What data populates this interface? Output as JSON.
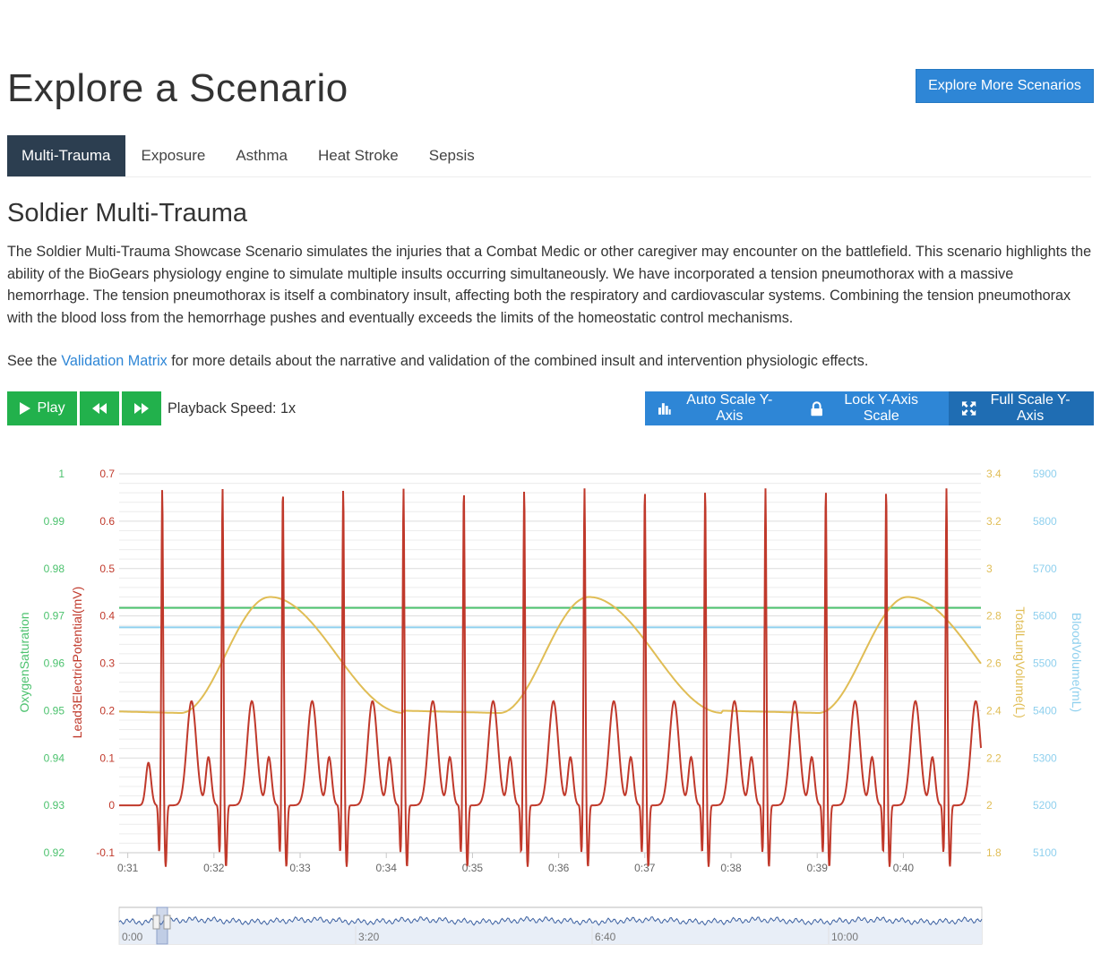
{
  "page": {
    "title": "Explore a Scenario",
    "more_button": "Explore More Scenarios"
  },
  "tabs": [
    {
      "label": "Multi-Trauma",
      "active": true
    },
    {
      "label": "Exposure",
      "active": false
    },
    {
      "label": "Asthma",
      "active": false
    },
    {
      "label": "Heat Stroke",
      "active": false
    },
    {
      "label": "Sepsis",
      "active": false
    }
  ],
  "scenario": {
    "title": "Soldier Multi-Trauma",
    "description": "The Soldier Multi-Trauma Showcase Scenario simulates the injuries that a Combat Medic or other caregiver may encounter on the battlefield. This scenario highlights the ability of the BioGears physiology engine to simulate multiple insults occurring simultaneously. We have incorporated a tension pneumothorax with a massive hemorrhage. The tension pneumothorax is itself a combinatory insult, affecting both the respiratory and cardiovascular systems. Combining the tension pneumothorax with the blood loss from the hemorrhage pushes and eventually exceeds the limits of the homeostatic control mechanisms.",
    "see_prefix": "See the",
    "see_link": "Validation Matrix",
    "see_suffix": "for more details about the narrative and validation of the combined insult and intervention physiologic effects."
  },
  "controls": {
    "play_label": "Play",
    "playback_speed": "Playback Speed: 1x",
    "auto_scale": "Auto Scale Y-Axis",
    "lock_scale": "Lock Y-Axis Scale",
    "full_scale": "Full Scale Y-Axis"
  },
  "colors": {
    "accent": "#2e86d6",
    "play_green": "#22b14c",
    "tab_active": "#2c3e50",
    "oxygen": "#4cc26e",
    "ecg": "#c0392b",
    "lung": "#e0bd55",
    "blood": "#8fd0ee"
  },
  "chart_data": {
    "type": "line",
    "x_ticks": [
      "0:31",
      "0:32",
      "0:33",
      "0:34",
      "0:35",
      "0:36",
      "0:37",
      "0:38",
      "0:39",
      "0:40"
    ],
    "xlim_seconds": [
      30.9,
      40.9
    ],
    "axes": [
      {
        "label": "OxygenSaturation",
        "side": "left",
        "ticks": [
          "1",
          "0.99",
          "0.98",
          "0.97",
          "0.96",
          "0.95",
          "0.94",
          "0.93",
          "0.92"
        ],
        "range": [
          0.92,
          1.0
        ]
      },
      {
        "label": "Lead3ElectricPotential(mV)",
        "side": "left",
        "ticks": [
          "0.7",
          "0.6",
          "0.5",
          "0.4",
          "0.3",
          "0.2",
          "0.1",
          "0",
          "-0.1"
        ],
        "range": [
          -0.1,
          0.7
        ]
      },
      {
        "label": "TotalLungVolume(L)",
        "side": "right",
        "ticks": [
          "3.4",
          "3.2",
          "3",
          "2.8",
          "2.6",
          "2.4",
          "2.2",
          "2",
          "1.8"
        ],
        "range": [
          1.8,
          3.4
        ]
      },
      {
        "label": "BloodVolume(mL)",
        "side": "right",
        "ticks": [
          "5900",
          "5800",
          "5700",
          "5600",
          "5500",
          "5400",
          "5300",
          "5200",
          "5100"
        ],
        "range": [
          5100,
          5900
        ]
      }
    ],
    "series": [
      {
        "name": "OxygenSaturation",
        "constant": 0.9717
      },
      {
        "name": "BloodVolume(mL)",
        "constant": 5576
      },
      {
        "name": "Lead3ElectricPotential(mV)",
        "r_peak": 0.67,
        "baseline": 0.0,
        "beat_times": [
          31.4,
          32.1,
          32.8,
          33.5,
          34.2,
          34.9,
          35.6,
          36.3,
          37.0,
          37.7,
          38.4,
          39.1,
          39.8,
          40.5
        ]
      },
      {
        "name": "TotalLungVolume(L)",
        "min": 2.39,
        "max": 2.88,
        "peak_times": [
          32.65,
          36.35,
          40.05
        ],
        "period_seconds": 3.7
      }
    ],
    "grid": true,
    "navigator": {
      "ticks": [
        "0:00",
        "3:20",
        "6:40",
        "10:00"
      ]
    }
  }
}
